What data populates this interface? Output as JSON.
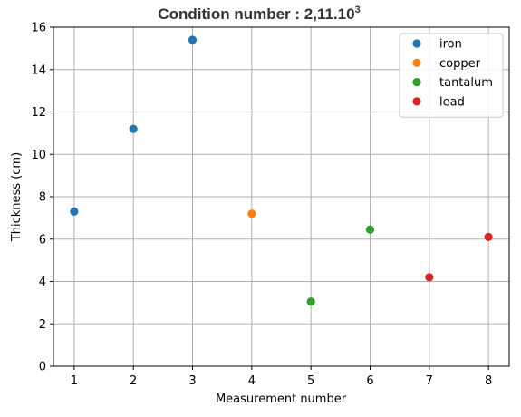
{
  "chart_data": {
    "type": "scatter",
    "title": "Condition number : 2,11.10",
    "title_superscript": "3",
    "xlabel": "Measurement number",
    "ylabel": "Thickness (cm)",
    "xlim": [
      0.65,
      8.35
    ],
    "ylim": [
      0,
      16
    ],
    "xticks": [
      1,
      2,
      3,
      4,
      5,
      6,
      7,
      8
    ],
    "yticks": [
      0,
      2,
      4,
      6,
      8,
      10,
      12,
      14,
      16
    ],
    "grid": true,
    "legend_position": "top-right",
    "series": [
      {
        "name": "iron",
        "color": "#1f77b4",
        "x": [
          1,
          2,
          3
        ],
        "y": [
          7.3,
          11.2,
          15.4
        ]
      },
      {
        "name": "copper",
        "color": "#ff7f0e",
        "x": [
          4
        ],
        "y": [
          7.2
        ]
      },
      {
        "name": "tantalum",
        "color": "#2ca02c",
        "x": [
          5,
          6
        ],
        "y": [
          3.05,
          6.45
        ]
      },
      {
        "name": "lead",
        "color": "#d62728",
        "x": [
          7,
          8
        ],
        "y": [
          4.2,
          6.1
        ]
      }
    ]
  }
}
